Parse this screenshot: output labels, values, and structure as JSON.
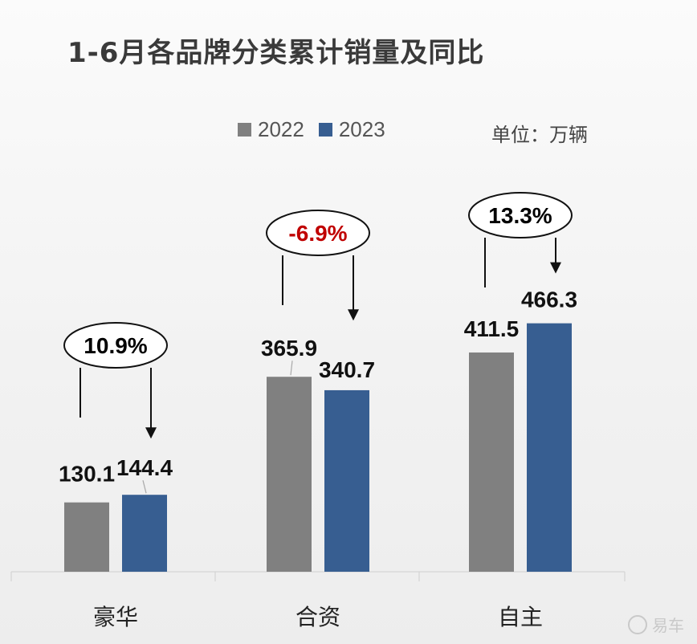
{
  "chart_data": {
    "type": "bar",
    "title": "1-6月各品牌分类累计销量及同比",
    "unit": "单位：万辆",
    "categories": [
      "豪华",
      "合资",
      "自主"
    ],
    "series": [
      {
        "name": "2022",
        "color": "#808080",
        "values": [
          130.1,
          365.9,
          411.5
        ]
      },
      {
        "name": "2023",
        "color": "#375e91",
        "values": [
          144.4,
          340.7,
          466.3
        ]
      }
    ],
    "value_labels": [
      [
        "130.1",
        "365.9",
        "411.5"
      ],
      [
        "144.4",
        "340.7",
        "466.3"
      ]
    ],
    "yoy": [
      "10.9%",
      "-6.9%",
      "13.3%"
    ],
    "yoy_colors": [
      "#000000",
      "#c00000",
      "#000000"
    ],
    "ylim": [
      0,
      600
    ],
    "grid": false,
    "legend_position": "top"
  },
  "watermark": "易车"
}
